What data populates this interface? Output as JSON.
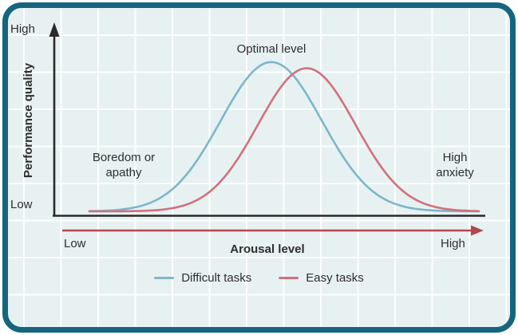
{
  "colors": {
    "border": "#15657f",
    "background": "#e7f1f2",
    "grid": "rgba(255,255,255,0.9)",
    "axis": "#2a2a2a",
    "x_arrow": "#b2484d",
    "text": "#2e2e2e",
    "difficult": "#7db6ca",
    "easy": "#d2707d"
  },
  "labels": {
    "y_high": "High",
    "y_low": "Low",
    "y_title": "Performance quality",
    "x_low": "Low",
    "x_high": "High",
    "x_title": "Arousal level",
    "optimal": "Optimal level",
    "boredom": "Boredom or apathy",
    "anxiety": "High anxiety"
  },
  "legend": {
    "items": [
      {
        "label": "Difficult tasks",
        "color": "#7db6ca"
      },
      {
        "label": "Easy tasks",
        "color": "#d2707d"
      }
    ]
  },
  "chart_data": {
    "type": "line",
    "title": "",
    "xlabel": "Arousal level",
    "ylabel": "Performance quality",
    "x_axis_ticks": [
      "Low",
      "High"
    ],
    "y_axis_ticks": [
      "Low",
      "High"
    ],
    "xlim": [
      0,
      1
    ],
    "ylim": [
      0,
      1
    ],
    "grid": true,
    "legend_position": "bottom",
    "annotations": [
      {
        "text": "Optimal level",
        "x": 0.47,
        "y": 1.0
      },
      {
        "text": "Boredom or apathy",
        "x": 0.09,
        "y": 0.3
      },
      {
        "text": "High anxiety",
        "x": 0.94,
        "y": 0.3
      }
    ],
    "series": [
      {
        "name": "Difficult tasks",
        "color": "#7db6ca",
        "curve": "gaussian",
        "mean": 0.467,
        "sd": 0.13,
        "peak": 0.97
      },
      {
        "name": "Easy tasks",
        "color": "#d2707d",
        "curve": "gaussian",
        "mean": 0.558,
        "sd": 0.125,
        "peak": 0.93
      }
    ]
  }
}
